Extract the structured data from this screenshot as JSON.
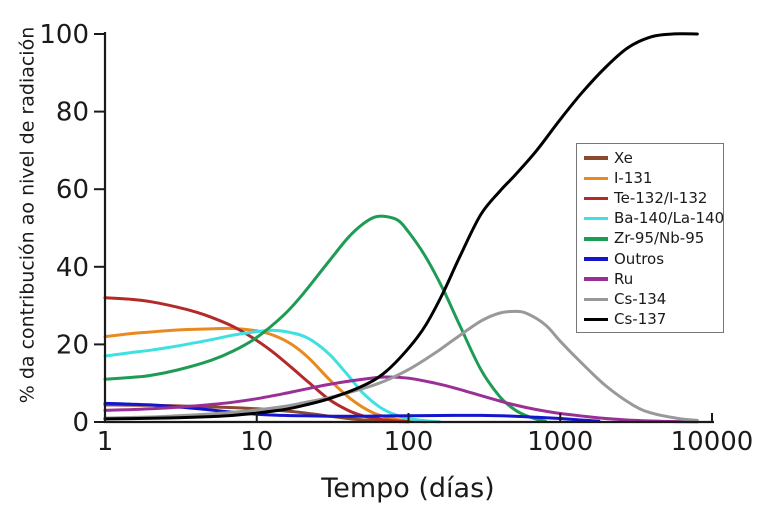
{
  "chart_data": {
    "type": "line",
    "title": "",
    "xlabel": "Tempo (días)",
    "ylabel": "% da contribución ao nivel de radiación",
    "x_scale": "log",
    "xlim": [
      1,
      10000
    ],
    "ylim": [
      0,
      100
    ],
    "x_ticks": [
      1,
      10,
      100,
      1000,
      10000
    ],
    "y_ticks": [
      0,
      20,
      40,
      60,
      80,
      100
    ],
    "grid": false,
    "legend_position": "center-right",
    "axis_color": "#1a1a1a",
    "background": "#ffffff",
    "series": [
      {
        "name": "Xe",
        "color": "#8B4A2E",
        "points": [
          [
            1,
            4.4
          ],
          [
            1.5,
            4.35
          ],
          [
            2,
            4.3
          ],
          [
            3,
            4.15
          ],
          [
            5,
            3.9
          ],
          [
            7,
            3.7
          ],
          [
            10,
            3.4
          ],
          [
            13,
            3.1
          ],
          [
            17,
            2.7
          ],
          [
            22,
            2.2
          ],
          [
            30,
            1.5
          ],
          [
            40,
            0.9
          ],
          [
            50,
            0.55
          ],
          [
            65,
            0.3
          ],
          [
            80,
            0.15
          ],
          [
            100,
            0.05
          ]
        ]
      },
      {
        "name": "I-131",
        "color": "#E88A20",
        "points": [
          [
            1,
            22
          ],
          [
            1.5,
            22.8
          ],
          [
            2,
            23.2
          ],
          [
            3,
            23.7
          ],
          [
            5,
            24
          ],
          [
            7,
            24.1
          ],
          [
            10,
            23.5
          ],
          [
            13,
            22.3
          ],
          [
            17,
            20
          ],
          [
            22,
            16.5
          ],
          [
            30,
            11
          ],
          [
            40,
            6.5
          ],
          [
            50,
            3.8
          ],
          [
            60,
            2.2
          ],
          [
            80,
            0.8
          ],
          [
            100,
            0.3
          ],
          [
            130,
            0.05
          ]
        ]
      },
      {
        "name": "Te-132/I-132",
        "color": "#B22A2A",
        "points": [
          [
            1,
            32
          ],
          [
            1.5,
            31.6
          ],
          [
            2,
            31
          ],
          [
            3,
            29.6
          ],
          [
            4,
            28.3
          ],
          [
            5,
            27
          ],
          [
            7,
            24.6
          ],
          [
            10,
            21
          ],
          [
            13,
            17.8
          ],
          [
            17,
            14
          ],
          [
            22,
            10.2
          ],
          [
            30,
            5.8
          ],
          [
            40,
            3
          ],
          [
            50,
            1.6
          ],
          [
            65,
            0.7
          ],
          [
            80,
            0.3
          ],
          [
            100,
            0.1
          ]
        ]
      },
      {
        "name": "Ba-140/La-140",
        "color": "#3FE0E0",
        "points": [
          [
            1,
            17
          ],
          [
            1.5,
            17.9
          ],
          [
            2,
            18.5
          ],
          [
            3,
            19.6
          ],
          [
            5,
            21.2
          ],
          [
            7,
            22.4
          ],
          [
            10,
            23.3
          ],
          [
            13,
            23.6
          ],
          [
            17,
            23
          ],
          [
            22,
            21.5
          ],
          [
            30,
            17.5
          ],
          [
            40,
            12
          ],
          [
            50,
            7.5
          ],
          [
            65,
            3.8
          ],
          [
            80,
            2
          ],
          [
            100,
            0.9
          ],
          [
            130,
            0.3
          ],
          [
            160,
            0.05
          ]
        ]
      },
      {
        "name": "Zr-95/Nb-95",
        "color": "#1E9C55",
        "points": [
          [
            1,
            11
          ],
          [
            1.5,
            11.5
          ],
          [
            2,
            12
          ],
          [
            3,
            13.4
          ],
          [
            5,
            15.9
          ],
          [
            7,
            18.3
          ],
          [
            10,
            21.8
          ],
          [
            15,
            27.5
          ],
          [
            20,
            32.8
          ],
          [
            30,
            41.5
          ],
          [
            40,
            47.5
          ],
          [
            50,
            51
          ],
          [
            60,
            52.8
          ],
          [
            70,
            53
          ],
          [
            85,
            52
          ],
          [
            100,
            49
          ],
          [
            130,
            42.5
          ],
          [
            170,
            34
          ],
          [
            220,
            24.5
          ],
          [
            300,
            13.5
          ],
          [
            400,
            6.5
          ],
          [
            500,
            3.2
          ],
          [
            600,
            1.6
          ],
          [
            700,
            0.7
          ],
          [
            800,
            0.2
          ]
        ]
      },
      {
        "name": "Outros",
        "color": "#1515CE",
        "points": [
          [
            1,
            4.8
          ],
          [
            1.5,
            4.6
          ],
          [
            2,
            4.4
          ],
          [
            3,
            3.9
          ],
          [
            5,
            3.1
          ],
          [
            7,
            2.5
          ],
          [
            10,
            2
          ],
          [
            15,
            1.7
          ],
          [
            20,
            1.6
          ],
          [
            30,
            1.5
          ],
          [
            50,
            1.5
          ],
          [
            100,
            1.6
          ],
          [
            200,
            1.7
          ],
          [
            300,
            1.7
          ],
          [
            500,
            1.5
          ],
          [
            700,
            1.2
          ],
          [
            1000,
            0.9
          ],
          [
            1400,
            0.5
          ],
          [
            1800,
            0.2
          ]
        ]
      },
      {
        "name": "Ru",
        "color": "#9A2F96",
        "points": [
          [
            1,
            3
          ],
          [
            1.5,
            3.2
          ],
          [
            2,
            3.4
          ],
          [
            3,
            3.8
          ],
          [
            5,
            4.5
          ],
          [
            7,
            5.1
          ],
          [
            10,
            6
          ],
          [
            15,
            7.3
          ],
          [
            20,
            8.3
          ],
          [
            30,
            9.7
          ],
          [
            50,
            11
          ],
          [
            70,
            11.6
          ],
          [
            100,
            11.3
          ],
          [
            150,
            10
          ],
          [
            200,
            8.8
          ],
          [
            300,
            6.8
          ],
          [
            400,
            5.4
          ],
          [
            500,
            4.4
          ],
          [
            700,
            3.2
          ],
          [
            1000,
            2.2
          ],
          [
            1500,
            1.4
          ],
          [
            2000,
            0.9
          ],
          [
            3000,
            0.45
          ],
          [
            4000,
            0.25
          ],
          [
            6000,
            0.1
          ],
          [
            8000,
            0.05
          ]
        ]
      },
      {
        "name": "Cs-134",
        "color": "#999999",
        "points": [
          [
            1,
            1
          ],
          [
            2,
            1.3
          ],
          [
            3,
            1.6
          ],
          [
            5,
            2.1
          ],
          [
            7,
            2.5
          ],
          [
            10,
            3.1
          ],
          [
            15,
            4
          ],
          [
            20,
            4.9
          ],
          [
            30,
            6.3
          ],
          [
            50,
            8.6
          ],
          [
            70,
            10.6
          ],
          [
            100,
            13.5
          ],
          [
            150,
            17.8
          ],
          [
            200,
            21.3
          ],
          [
            300,
            26
          ],
          [
            400,
            28.1
          ],
          [
            500,
            28.5
          ],
          [
            600,
            28
          ],
          [
            800,
            25
          ],
          [
            1000,
            20.8
          ],
          [
            1400,
            15
          ],
          [
            2000,
            9.3
          ],
          [
            3000,
            4.4
          ],
          [
            4000,
            2.3
          ],
          [
            6000,
            0.9
          ],
          [
            8000,
            0.4
          ]
        ]
      },
      {
        "name": "Cs-137",
        "color": "#000000",
        "points": [
          [
            1,
            0.8
          ],
          [
            2,
            0.95
          ],
          [
            3,
            1.1
          ],
          [
            5,
            1.4
          ],
          [
            7,
            1.7
          ],
          [
            10,
            2.3
          ],
          [
            15,
            3.2
          ],
          [
            20,
            4.2
          ],
          [
            30,
            6
          ],
          [
            50,
            9.3
          ],
          [
            70,
            12.8
          ],
          [
            100,
            19
          ],
          [
            130,
            25
          ],
          [
            170,
            33.5
          ],
          [
            220,
            43
          ],
          [
            300,
            53.5
          ],
          [
            400,
            59.5
          ],
          [
            500,
            63.5
          ],
          [
            700,
            70
          ],
          [
            1000,
            78
          ],
          [
            1400,
            85
          ],
          [
            2000,
            91.5
          ],
          [
            2800,
            96.5
          ],
          [
            4000,
            99.3
          ],
          [
            5500,
            100
          ],
          [
            8000,
            100
          ]
        ]
      }
    ]
  }
}
